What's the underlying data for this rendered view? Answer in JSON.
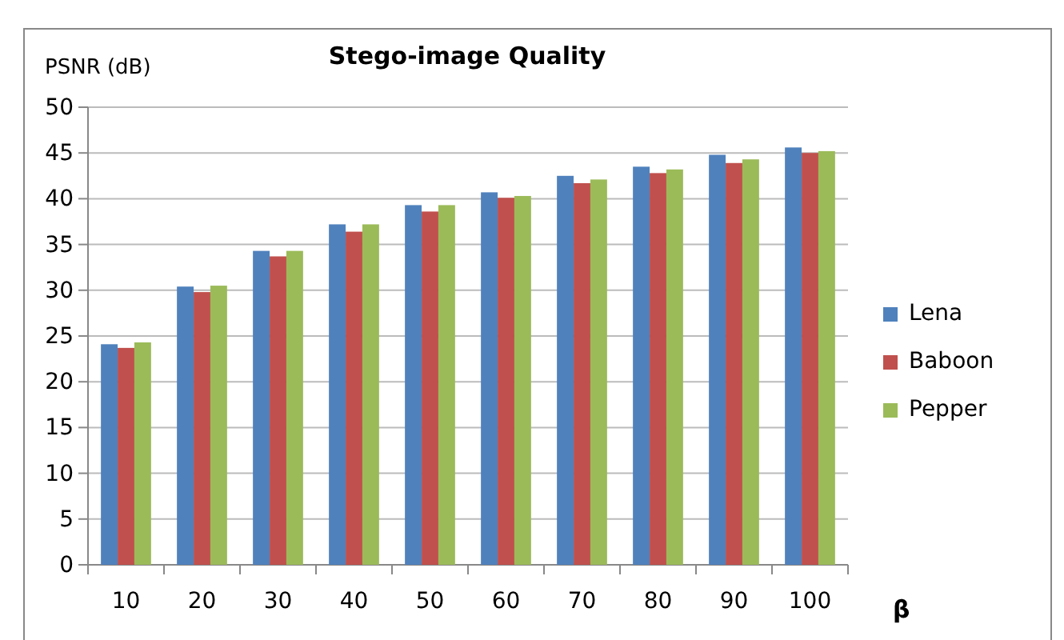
{
  "chart_data": {
    "type": "bar",
    "title": "Stego-image Quality",
    "ylabel": "PSNR (dB)",
    "xlabel": "β",
    "categories": [
      "10",
      "20",
      "30",
      "40",
      "50",
      "60",
      "70",
      "80",
      "90",
      "100"
    ],
    "series": [
      {
        "name": "Lena",
        "color": "#4f81bd",
        "values": [
          24.1,
          30.4,
          34.3,
          37.2,
          39.3,
          40.7,
          42.5,
          43.5,
          44.8,
          45.6
        ]
      },
      {
        "name": "Baboon",
        "color": "#c0504d",
        "values": [
          23.7,
          29.8,
          33.7,
          36.4,
          38.6,
          40.1,
          41.7,
          42.8,
          43.9,
          45.0
        ]
      },
      {
        "name": "Pepper",
        "color": "#9bbb59",
        "values": [
          24.3,
          30.5,
          34.3,
          37.2,
          39.3,
          40.3,
          42.1,
          43.2,
          44.3,
          45.2
        ]
      }
    ],
    "ylim": [
      0,
      50
    ],
    "yticks": [
      0,
      5,
      10,
      15,
      20,
      25,
      30,
      35,
      40,
      45,
      50
    ],
    "grid": "y",
    "legend": "right"
  }
}
